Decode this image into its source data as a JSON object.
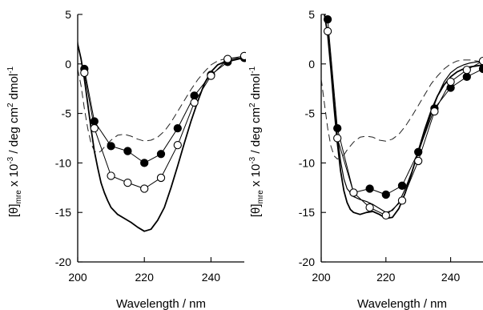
{
  "chart_data": [
    {
      "type": "line",
      "panel": "left",
      "xlabel": "Wavelength / nm",
      "ylabel": {
        "prefix": "[θ]",
        "sub": "mre",
        "mid": " x 10",
        "exp": "-3",
        "unit": " / deg cm",
        "exp2": "2",
        "tail": " dmol",
        "exp3": "-1"
      },
      "xlim": [
        200,
        250
      ],
      "ylim": [
        -20,
        5
      ],
      "xticks": [
        200,
        220,
        240
      ],
      "yticks": [
        5,
        0,
        -5,
        -10,
        -15,
        -20
      ],
      "series": [
        {
          "style": "solid-thick",
          "x": [
            199.5,
            200,
            201,
            202,
            203,
            204,
            205,
            206,
            207,
            208,
            209,
            210,
            212,
            214,
            216,
            218,
            220,
            222,
            224,
            226,
            228,
            230,
            232,
            234,
            236,
            238,
            240,
            242,
            244,
            246,
            248,
            250
          ],
          "y": [
            3.5,
            2.0,
            0.5,
            -1.5,
            -4.0,
            -6.5,
            -8.8,
            -10.5,
            -12.0,
            -13.0,
            -13.8,
            -14.5,
            -15.2,
            -15.6,
            -16.0,
            -16.5,
            -16.9,
            -16.7,
            -15.8,
            -14.5,
            -12.5,
            -10.3,
            -8.0,
            -5.8,
            -3.8,
            -2.0,
            -0.8,
            -0.1,
            0.2,
            0.4,
            0.5,
            0.7
          ]
        },
        {
          "style": "dashed",
          "x": [
            200,
            201,
            202,
            203,
            204,
            205,
            206,
            207,
            208,
            210,
            212,
            214,
            216,
            218,
            220,
            222,
            224,
            226,
            228,
            230,
            232,
            234,
            236,
            238,
            240,
            242,
            244,
            246,
            248,
            250
          ],
          "y": [
            -0.5,
            -2.2,
            -4.5,
            -6.5,
            -8.0,
            -8.8,
            -9.0,
            -8.8,
            -8.4,
            -7.7,
            -7.2,
            -7.1,
            -7.3,
            -7.6,
            -7.8,
            -7.7,
            -7.4,
            -6.8,
            -5.9,
            -4.8,
            -3.7,
            -2.6,
            -1.6,
            -0.8,
            -0.1,
            0.3,
            0.5,
            0.6,
            0.6,
            0.6
          ]
        },
        {
          "style": "filled-marker",
          "x": [
            202,
            205,
            210,
            215,
            220,
            225,
            230,
            235,
            240,
            245,
            250
          ],
          "y": [
            -0.5,
            -5.8,
            -8.3,
            -8.8,
            -10.0,
            -9.1,
            -6.5,
            -3.2,
            -1.1,
            0.2,
            0.6
          ]
        },
        {
          "style": "open-marker",
          "x": [
            202,
            205,
            210,
            215,
            220,
            225,
            230,
            235,
            240,
            245,
            250
          ],
          "y": [
            -0.9,
            -6.5,
            -11.3,
            -12.0,
            -12.6,
            -11.5,
            -8.2,
            -3.9,
            -1.2,
            0.5,
            0.8
          ]
        }
      ]
    },
    {
      "type": "line",
      "panel": "right",
      "xlabel": "Wavelength / nm",
      "ylabel": {
        "prefix": "[θ]",
        "sub": "mre",
        "mid": " x 10",
        "exp": "-3",
        "unit": " / deg cm",
        "exp2": "2",
        "tail": " dmol",
        "exp3": "-1"
      },
      "xlim": [
        200,
        250
      ],
      "ylim": [
        -20,
        5
      ],
      "xticks": [
        200,
        220,
        240
      ],
      "yticks": [
        5,
        0,
        -5,
        -10,
        -15,
        -20
      ],
      "series": [
        {
          "style": "solid-thick",
          "x": [
            201,
            202,
            203,
            204,
            205,
            206,
            207,
            208,
            209,
            210,
            212,
            214,
            216,
            218,
            220,
            222,
            224,
            226,
            228,
            230,
            232,
            234,
            236,
            238,
            240,
            242,
            244,
            246,
            248,
            250
          ],
          "y": [
            5.0,
            3.0,
            -0.5,
            -4.5,
            -8.0,
            -10.8,
            -12.8,
            -14.0,
            -14.7,
            -15.0,
            -15.2,
            -15.0,
            -14.9,
            -15.2,
            -15.6,
            -15.5,
            -14.6,
            -13.0,
            -11.0,
            -8.8,
            -6.6,
            -4.7,
            -3.2,
            -2.1,
            -1.3,
            -0.8,
            -0.5,
            -0.3,
            -0.2,
            -0.1
          ]
        },
        {
          "style": "solid-thin",
          "x": [
            202,
            203,
            204,
            205,
            206,
            207,
            208,
            210,
            212,
            214,
            216,
            218,
            220,
            222,
            224,
            226,
            228,
            230,
            232,
            234,
            236,
            238,
            240,
            242,
            244,
            246,
            248,
            250
          ],
          "y": [
            3.5,
            0.0,
            -3.8,
            -7.2,
            -9.8,
            -11.6,
            -12.6,
            -13.4,
            -13.7,
            -13.9,
            -14.2,
            -14.6,
            -15.0,
            -14.8,
            -14.0,
            -12.6,
            -10.9,
            -9.0,
            -7.0,
            -5.0,
            -3.2,
            -1.8,
            -0.9,
            -0.4,
            -0.1,
            0.1,
            0.2,
            0.2
          ]
        },
        {
          "style": "dashed",
          "x": [
            200,
            201,
            202,
            203,
            204,
            205,
            206,
            207,
            208,
            210,
            212,
            214,
            216,
            218,
            220,
            222,
            224,
            226,
            228,
            230,
            232,
            234,
            236,
            238,
            240,
            242,
            244,
            246,
            248,
            250
          ],
          "y": [
            -1.5,
            -4.0,
            -6.5,
            -8.3,
            -9.3,
            -9.6,
            -9.5,
            -9.2,
            -8.7,
            -7.9,
            -7.4,
            -7.3,
            -7.4,
            -7.7,
            -7.8,
            -7.6,
            -7.1,
            -6.3,
            -5.3,
            -4.2,
            -3.1,
            -2.0,
            -1.2,
            -0.5,
            0.0,
            0.3,
            0.4,
            0.4,
            0.3,
            0.2
          ]
        },
        {
          "style": "filled-marker",
          "x": [
            202,
            205,
            210,
            215,
            220,
            225,
            230,
            235,
            240,
            245,
            250
          ],
          "y": [
            4.5,
            -6.5,
            -13.0,
            -12.6,
            -13.2,
            -12.3,
            -8.9,
            -4.5,
            -2.4,
            -1.3,
            -0.5
          ]
        },
        {
          "style": "open-marker",
          "x": [
            202,
            205,
            210,
            215,
            220,
            225,
            230,
            235,
            240,
            245,
            250
          ],
          "y": [
            3.3,
            -7.5,
            -13.0,
            -14.5,
            -15.3,
            -13.8,
            -9.8,
            -4.8,
            -1.8,
            -0.6,
            0.3
          ]
        }
      ]
    }
  ]
}
